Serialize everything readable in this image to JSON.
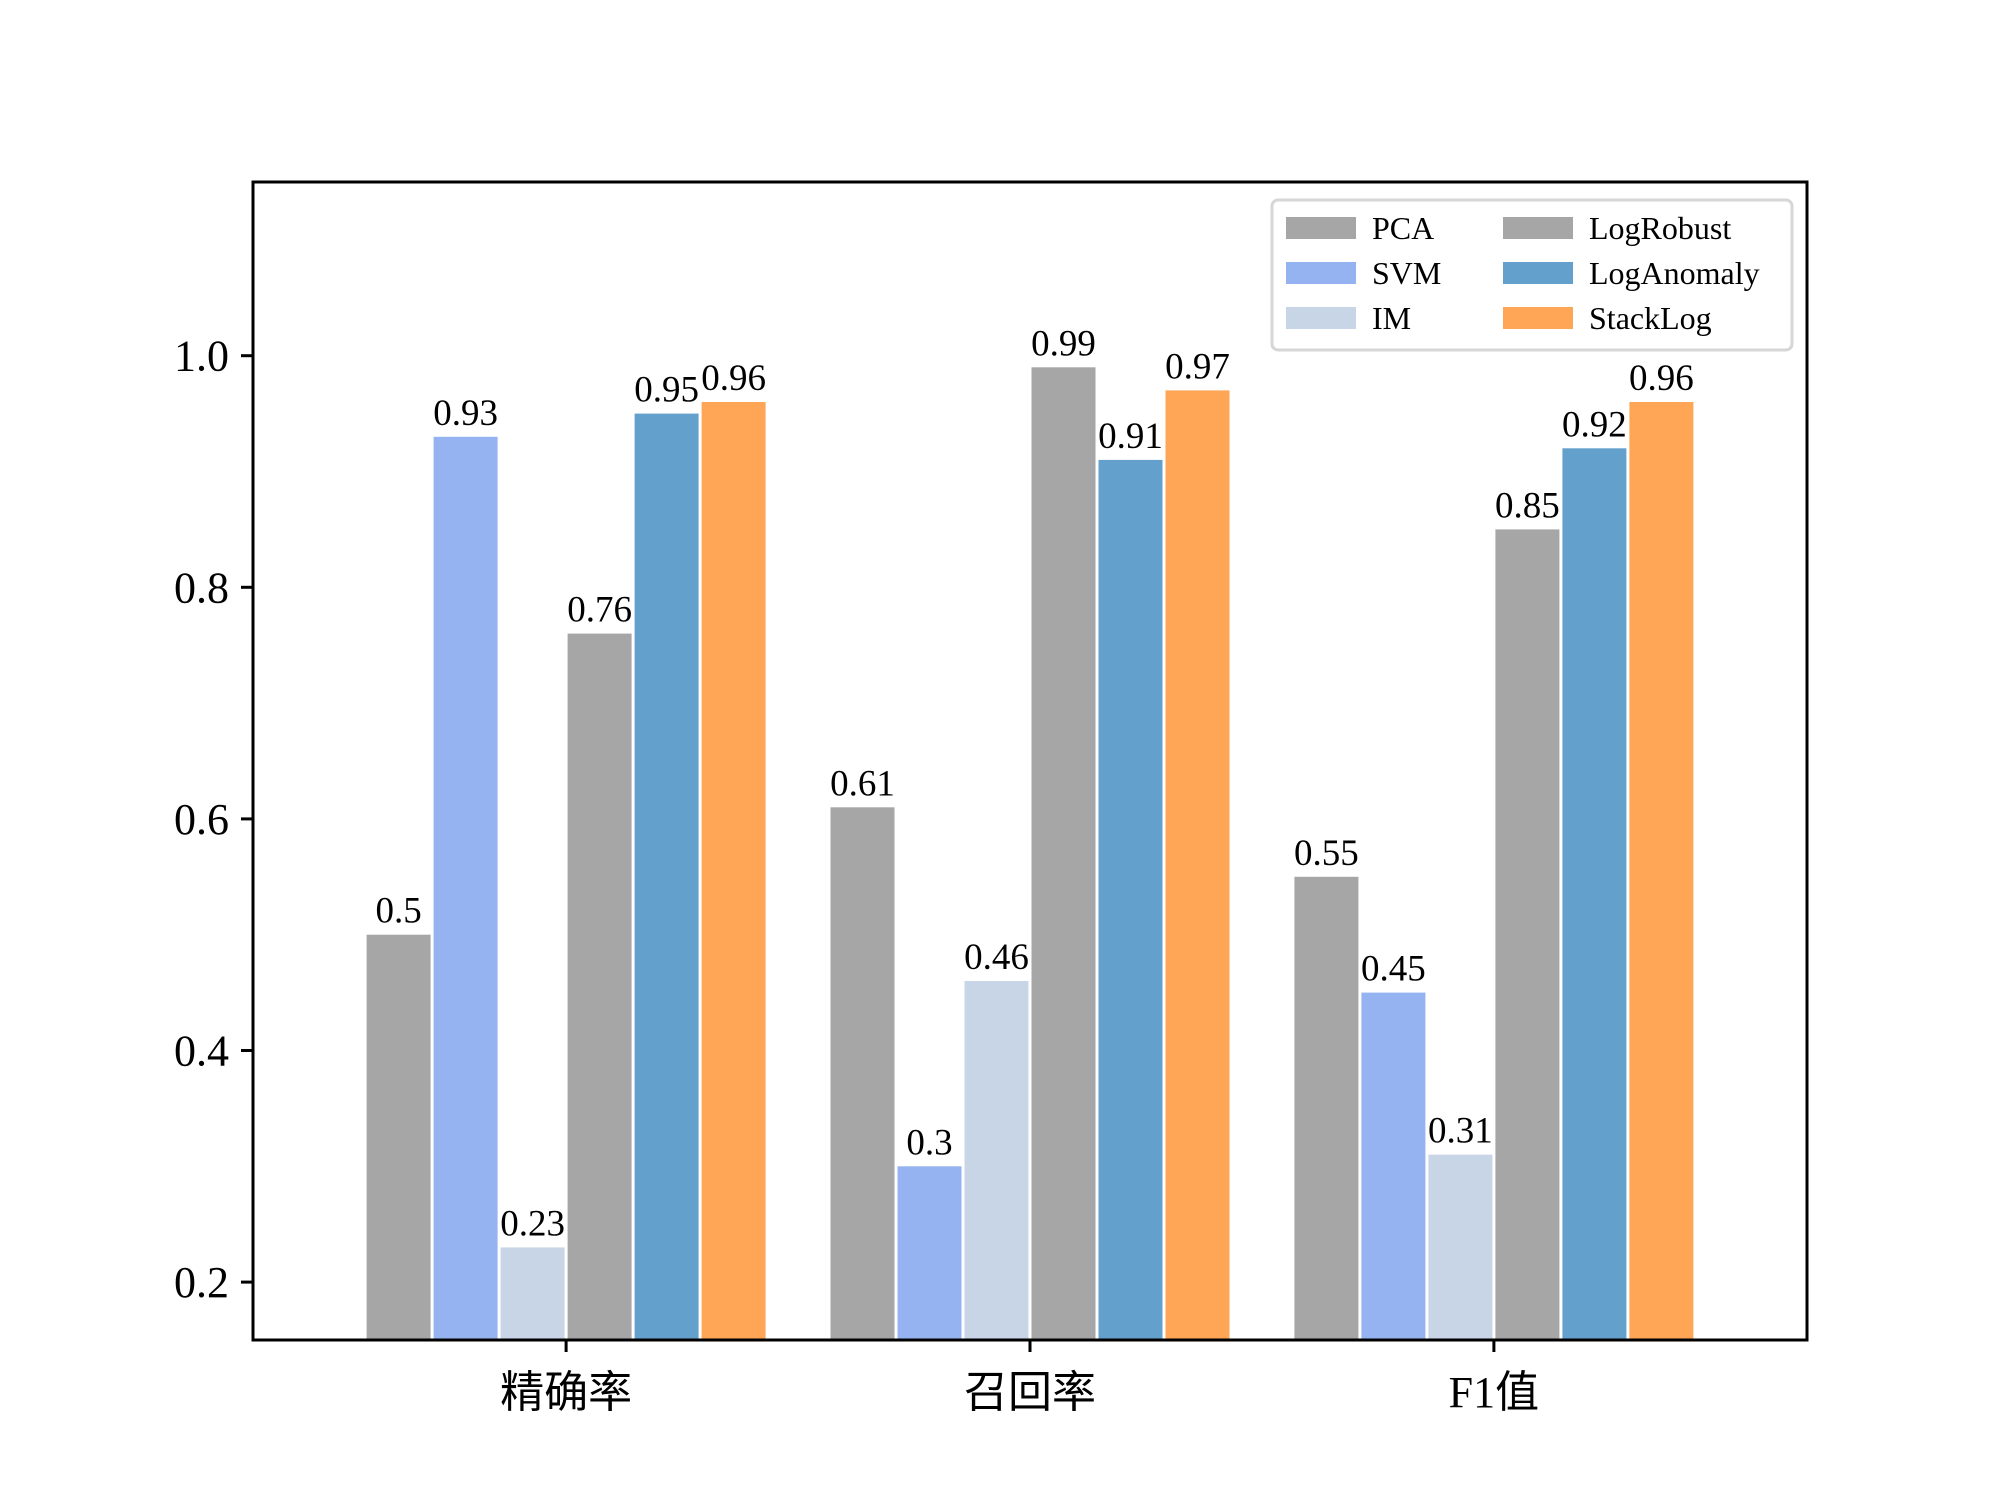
{
  "chart_data": {
    "type": "bar",
    "title": "",
    "xlabel": "",
    "ylabel": "",
    "categories": [
      "精确率",
      "召回率",
      "F1值"
    ],
    "ylim": [
      0.15,
      1.15
    ],
    "yticks": [
      "0.2",
      "0.4",
      "0.6",
      "0.8",
      "1.0"
    ],
    "grid": false,
    "legend_position": "top-right",
    "legend_columns": 2,
    "series": [
      {
        "name": "PCA",
        "color": "#a6a6a6",
        "values": [
          0.5,
          0.61,
          0.55
        ],
        "labels": [
          "0.5",
          "0.61",
          "0.55"
        ]
      },
      {
        "name": "SVM",
        "color": "#94b3f0",
        "values": [
          0.93,
          0.3,
          0.45
        ],
        "labels": [
          "0.93",
          "0.3",
          "0.45"
        ]
      },
      {
        "name": "IM",
        "color": "#c8d5e6",
        "values": [
          0.23,
          0.46,
          0.31
        ],
        "labels": [
          "0.23",
          "0.46",
          "0.31"
        ]
      },
      {
        "name": "LogRobust",
        "color": "#a6a6a6",
        "values": [
          0.76,
          0.99,
          0.85
        ],
        "labels": [
          "0.76",
          "0.99",
          "0.85"
        ]
      },
      {
        "name": "LogAnomaly",
        "color": "#64a0cc",
        "values": [
          0.95,
          0.91,
          0.92
        ],
        "labels": [
          "0.95",
          "0.91",
          "0.92"
        ]
      },
      {
        "name": "StackLog",
        "color": "#fea656",
        "values": [
          0.96,
          0.97,
          0.96
        ],
        "labels": [
          "0.96",
          "0.97",
          "0.96"
        ]
      }
    ]
  }
}
